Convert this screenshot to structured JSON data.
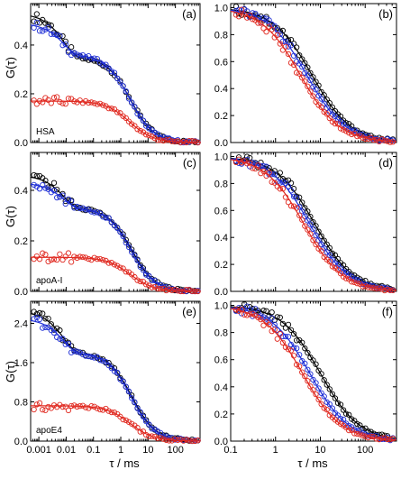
{
  "figure": {
    "ylabel_left": "G(τ)",
    "xlabel_left": "τ / ms",
    "xlabel_right": "τ / ms"
  },
  "colors": {
    "black": "#000000",
    "blue": "#1f2fd6",
    "red": "#e0281f"
  },
  "chart_data": [
    {
      "id": "a",
      "panel_label": "(a)",
      "annotation": "HSA",
      "type": "scatter",
      "xscale": "log",
      "xlim": [
        0.0005,
        800
      ],
      "ylim": [
        0,
        0.57
      ],
      "yticks": [
        {
          "v": 0.0,
          "label": "0.0"
        },
        {
          "v": 0.2,
          "label": "0.2"
        },
        {
          "v": 0.4,
          "label": "0.4"
        }
      ],
      "xticks": [],
      "series": [
        {
          "color": "black",
          "A": 0.53,
          "g1": 0.18,
          "t1": 0.008,
          "t2": 2.3
        },
        {
          "color": "blue",
          "A": 0.49,
          "g1": 0.13,
          "t1": 0.008,
          "t2": 2.1
        },
        {
          "color": "red",
          "A": 0.17,
          "g1": 0.0,
          "t1": 0.01,
          "t2": 2.1
        }
      ]
    },
    {
      "id": "b",
      "panel_label": "(b)",
      "annotation": "",
      "type": "scatter",
      "xscale": "log",
      "xlim": [
        0.1,
        500
      ],
      "ylim": [
        0,
        1.03
      ],
      "yticks": [
        {
          "v": 0.0,
          "label": "0.0"
        },
        {
          "v": 0.2,
          "label": "0.2"
        },
        {
          "v": 0.4,
          "label": "0.4"
        },
        {
          "v": 0.6,
          "label": "0.6"
        },
        {
          "v": 0.8,
          "label": "0.8"
        },
        {
          "v": 1.0,
          "label": "1.0"
        }
      ],
      "xticks": [],
      "series": [
        {
          "color": "black",
          "A": 1.0,
          "g1": 0.0,
          "t1": 1,
          "t2": 6.5
        },
        {
          "color": "blue",
          "A": 1.0,
          "g1": 0.0,
          "t1": 1,
          "t2": 5.0
        },
        {
          "color": "red",
          "A": 1.0,
          "g1": 0.0,
          "t1": 1,
          "t2": 3.6
        }
      ]
    },
    {
      "id": "c",
      "panel_label": "(c)",
      "annotation": "apoA-I",
      "type": "scatter",
      "xscale": "log",
      "xlim": [
        0.0005,
        800
      ],
      "ylim": [
        0,
        0.55
      ],
      "yticks": [
        {
          "v": 0.0,
          "label": "0.0"
        },
        {
          "v": 0.2,
          "label": "0.2"
        },
        {
          "v": 0.4,
          "label": "0.4"
        }
      ],
      "xticks": [],
      "series": [
        {
          "color": "black",
          "A": 0.46,
          "g1": 0.13,
          "t1": 0.008,
          "t2": 2.5
        },
        {
          "color": "blue",
          "A": 0.43,
          "g1": 0.1,
          "t1": 0.008,
          "t2": 2.3
        },
        {
          "color": "red",
          "A": 0.135,
          "g1": 0.0,
          "t1": 0.01,
          "t2": 2.2
        }
      ]
    },
    {
      "id": "d",
      "panel_label": "(d)",
      "annotation": "",
      "type": "scatter",
      "xscale": "log",
      "xlim": [
        0.1,
        500
      ],
      "ylim": [
        0,
        1.03
      ],
      "yticks": [
        {
          "v": 0.0,
          "label": "0.0"
        },
        {
          "v": 0.2,
          "label": "0.2"
        },
        {
          "v": 0.4,
          "label": "0.4"
        },
        {
          "v": 0.6,
          "label": "0.6"
        },
        {
          "v": 0.8,
          "label": "0.8"
        },
        {
          "v": 1.0,
          "label": "1.0"
        }
      ],
      "xticks": [],
      "series": [
        {
          "color": "black",
          "A": 1.0,
          "g1": 0.0,
          "t1": 1,
          "t2": 7.5
        },
        {
          "color": "blue",
          "A": 1.0,
          "g1": 0.0,
          "t1": 1,
          "t2": 5.8
        },
        {
          "color": "red",
          "A": 1.0,
          "g1": 0.0,
          "t1": 1,
          "t2": 4.3
        }
      ]
    },
    {
      "id": "e",
      "panel_label": "(e)",
      "annotation": "apoE4",
      "type": "scatter",
      "xscale": "log",
      "xlim": [
        0.0005,
        800
      ],
      "ylim": [
        0,
        2.85
      ],
      "yticks": [
        {
          "v": 0.0,
          "label": "0.0"
        },
        {
          "v": 0.8,
          "label": "0.8"
        },
        {
          "v": 1.6,
          "label": "1.6"
        },
        {
          "v": 2.4,
          "label": "2.4"
        }
      ],
      "xticks": [
        {
          "v": 0.001,
          "label": "0.001"
        },
        {
          "v": 0.01,
          "label": "0.01"
        },
        {
          "v": 0.1,
          "label": "0.1"
        },
        {
          "v": 1,
          "label": "1"
        },
        {
          "v": 10,
          "label": "10"
        },
        {
          "v": 100,
          "label": "100"
        }
      ],
      "series": [
        {
          "color": "black",
          "A": 2.65,
          "g1": 0.85,
          "t1": 0.008,
          "t2": 2.6
        },
        {
          "color": "blue",
          "A": 2.5,
          "g1": 0.7,
          "t1": 0.008,
          "t2": 2.4
        },
        {
          "color": "red",
          "A": 0.72,
          "g1": 0.0,
          "t1": 0.01,
          "t2": 2.2
        }
      ]
    },
    {
      "id": "f",
      "panel_label": "(f)",
      "annotation": "",
      "type": "scatter",
      "xscale": "log",
      "xlim": [
        0.1,
        500
      ],
      "ylim": [
        0,
        1.03
      ],
      "yticks": [
        {
          "v": 0.0,
          "label": "0.0"
        },
        {
          "v": 0.2,
          "label": "0.2"
        },
        {
          "v": 0.4,
          "label": "0.4"
        },
        {
          "v": 0.6,
          "label": "0.6"
        },
        {
          "v": 0.8,
          "label": "0.8"
        },
        {
          "v": 1.0,
          "label": "1.0"
        }
      ],
      "xticks": [
        {
          "v": 0.1,
          "label": "0.1"
        },
        {
          "v": 1,
          "label": "1"
        },
        {
          "v": 10,
          "label": "10"
        },
        {
          "v": 100,
          "label": "100"
        }
      ],
      "series": [
        {
          "color": "black",
          "A": 1.0,
          "g1": 0.0,
          "t1": 1,
          "t2": 10.0
        },
        {
          "color": "blue",
          "A": 1.0,
          "g1": 0.0,
          "t1": 1,
          "t2": 5.8
        },
        {
          "color": "red",
          "A": 1.0,
          "g1": 0.0,
          "t1": 1,
          "t2": 4.0
        }
      ]
    }
  ]
}
